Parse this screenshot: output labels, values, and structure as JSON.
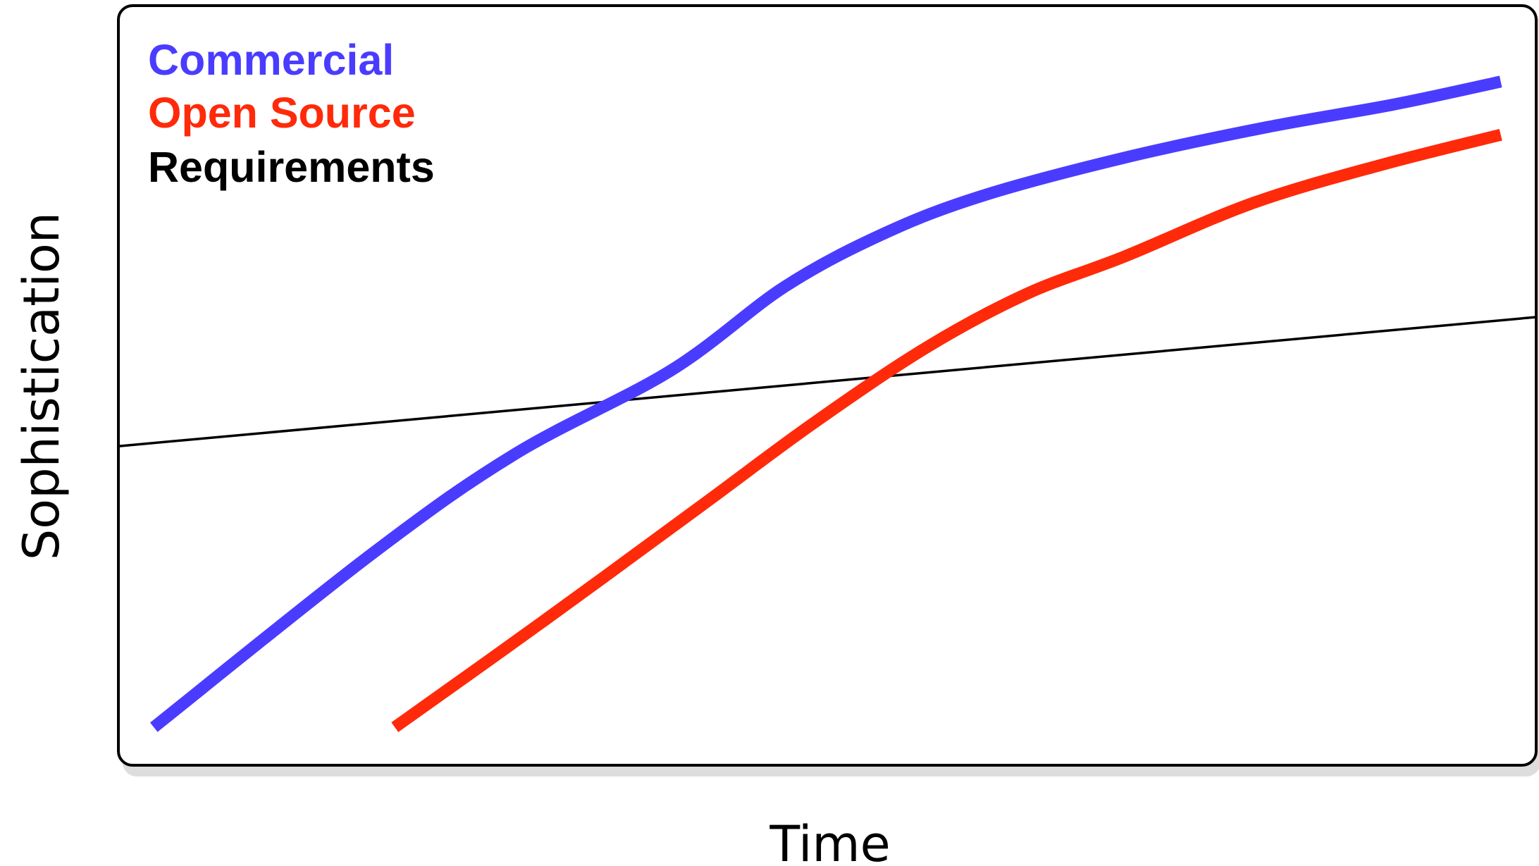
{
  "chart_data": {
    "type": "line",
    "title": "",
    "xlabel": "Time",
    "ylabel": "Sophistication",
    "xlim": [
      0,
      100
    ],
    "ylim": [
      0,
      100
    ],
    "grid": false,
    "legend_position": "top-left",
    "series": [
      {
        "name": "Commercial",
        "color": "#4a3cff",
        "x": [
          2.5,
          18,
          28,
          39,
          47,
          54,
          61,
          71,
          81,
          90,
          97.5
        ],
        "y": [
          5,
          28,
          41,
          52,
          63,
          70,
          75,
          80,
          84,
          87,
          90
        ]
      },
      {
        "name": "Open Source",
        "color": "#ff2a0a",
        "x": [
          19.5,
          30,
          41,
          49,
          57,
          64,
          71,
          80,
          89,
          97.5
        ],
        "y": [
          5,
          19,
          34,
          45,
          55,
          62,
          67,
          74,
          79,
          83
        ]
      },
      {
        "name": "Requirements",
        "color": "#000000",
        "x": [
          0,
          100
        ],
        "y": [
          42,
          59
        ]
      }
    ]
  }
}
